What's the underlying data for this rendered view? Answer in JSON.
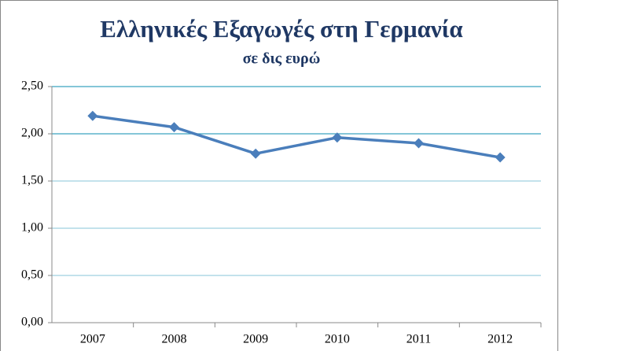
{
  "chart_data": {
    "type": "line",
    "title": "Ελληνικές Εξαγωγές στη Γερμανία",
    "subtitle": "σε δις ευρώ",
    "categories": [
      "2007",
      "2008",
      "2009",
      "2010",
      "2011",
      "2012"
    ],
    "series": [
      {
        "name": "Εξαγωγές",
        "color": "#4a7ebb",
        "values": [
          2.19,
          2.07,
          1.79,
          1.96,
          1.9,
          1.75
        ]
      }
    ],
    "ylim": [
      0,
      2.5
    ],
    "yticks": [
      {
        "value": 0,
        "label": "0,00"
      },
      {
        "value": 0.5,
        "label": "0,50"
      },
      {
        "value": 1,
        "label": "1,00"
      },
      {
        "value": 1.5,
        "label": "1,50"
      },
      {
        "value": 2,
        "label": "2,00"
      },
      {
        "value": 2.5,
        "label": "2,50"
      }
    ],
    "grid": true
  }
}
